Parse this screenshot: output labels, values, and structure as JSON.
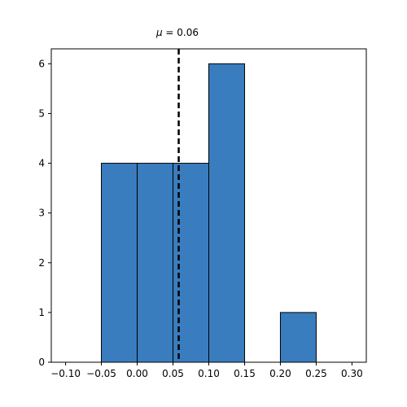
{
  "chart_data": {
    "type": "bar",
    "title": "μ = 0.06",
    "xlabel": "",
    "ylabel": "",
    "bins": [
      {
        "x0": -0.05,
        "x1": 0.0,
        "count": 4
      },
      {
        "x0": 0.0,
        "x1": 0.05,
        "count": 4
      },
      {
        "x0": 0.05,
        "x1": 0.1,
        "count": 4
      },
      {
        "x0": 0.1,
        "x1": 0.15,
        "count": 6
      },
      {
        "x0": 0.2,
        "x1": 0.25,
        "count": 1
      }
    ],
    "mean": 0.058,
    "xlim": [
      -0.12,
      0.32
    ],
    "ylim": [
      0,
      6.3
    ],
    "xticks": [
      -0.1,
      -0.05,
      0.0,
      0.05,
      0.1,
      0.15,
      0.2,
      0.25,
      0.3
    ],
    "xtick_labels": [
      "−0.10",
      "−0.05",
      "0.00",
      "0.05",
      "0.10",
      "0.15",
      "0.20",
      "0.25",
      "0.30"
    ],
    "yticks": [
      0,
      1,
      2,
      3,
      4,
      5,
      6
    ],
    "ytick_labels": [
      "0",
      "1",
      "2",
      "3",
      "4",
      "5",
      "6"
    ],
    "bar_color": "#3a7dbf",
    "edge_color": "#000000",
    "mean_line_color": "#000000",
    "mean_line_style": "dashed",
    "grid": false
  }
}
